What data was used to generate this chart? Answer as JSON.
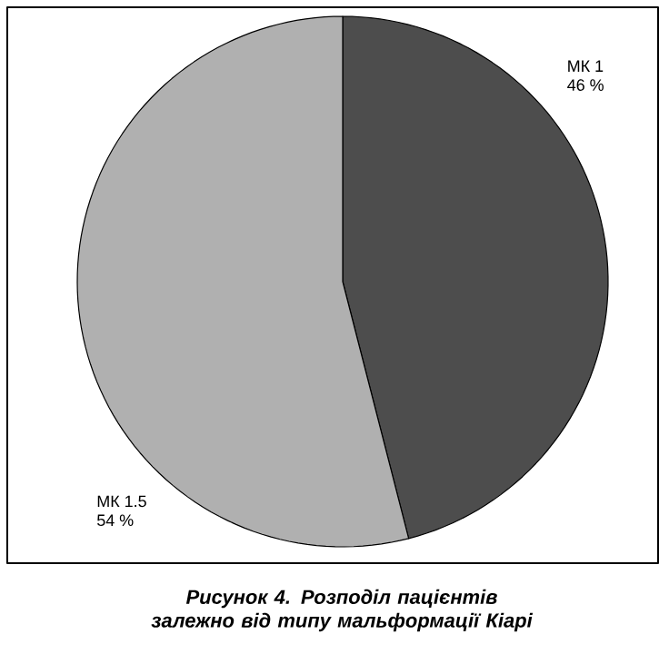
{
  "chart_data": {
    "type": "pie",
    "categories": [
      "МК 1",
      "МК 1.5"
    ],
    "values": [
      46,
      54
    ],
    "value_labels": [
      "46 %",
      "54 %"
    ],
    "colors": [
      "#4d4d4d",
      "#b0b0b0"
    ],
    "annotations": [
      "Рисунок 4. Розподіл пацієнтів залежно від типу мальформації Кіарі"
    ]
  }
}
